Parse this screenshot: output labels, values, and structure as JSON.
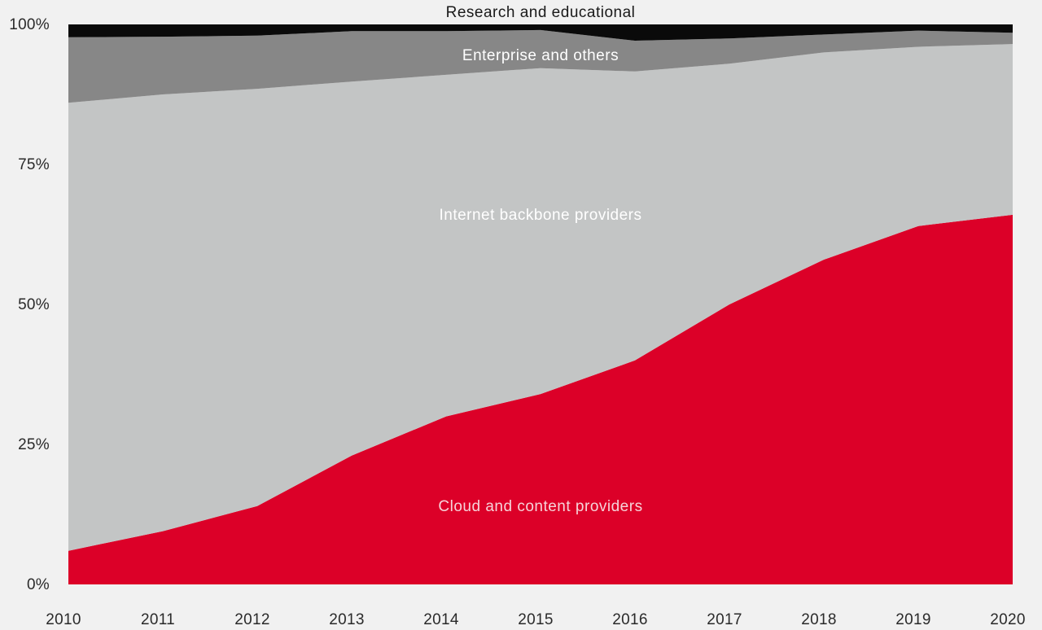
{
  "chart_data": {
    "type": "area",
    "stacked": true,
    "normalized": true,
    "title": "",
    "xlabel": "",
    "ylabel": "",
    "x": [
      2010,
      2011,
      2012,
      2013,
      2014,
      2015,
      2016,
      2017,
      2018,
      2019,
      2020
    ],
    "x_tick_labels": [
      "2010",
      "2011",
      "2012",
      "2013",
      "2014",
      "2015",
      "2016",
      "2017",
      "2018",
      "2019",
      "2020"
    ],
    "ylim": [
      0,
      100
    ],
    "y_ticks": [
      0,
      25,
      50,
      75,
      100
    ],
    "y_tick_labels": [
      "0%",
      "25%",
      "50%",
      "75%",
      "100%"
    ],
    "grid": false,
    "series": [
      {
        "name": "Cloud and content providers",
        "color": "#dc0028",
        "label_color": "#f6d3d9",
        "values": [
          6.0,
          9.5,
          14.0,
          23.0,
          30.0,
          34.0,
          40.0,
          50.0,
          58.0,
          64.0,
          66.0
        ]
      },
      {
        "name": "Internet backbone providers",
        "color": "#c3c5c5",
        "label_color": "#ffffff",
        "values": [
          80.0,
          78.0,
          74.5,
          66.8,
          61.0,
          58.2,
          51.6,
          43.0,
          37.0,
          32.0,
          30.5
        ]
      },
      {
        "name": "Enterprise and others",
        "color": "#878787",
        "label_color": "#ffffff",
        "values": [
          11.7,
          10.3,
          9.5,
          9.0,
          7.8,
          6.8,
          5.5,
          4.5,
          3.2,
          2.9,
          2.0
        ]
      },
      {
        "name": "Research and educational",
        "color": "#0a0a0a",
        "label_color": "#1a1a1a",
        "values": [
          2.3,
          2.2,
          2.0,
          1.2,
          1.2,
          1.0,
          2.9,
          2.5,
          1.8,
          1.1,
          1.5
        ]
      }
    ]
  }
}
